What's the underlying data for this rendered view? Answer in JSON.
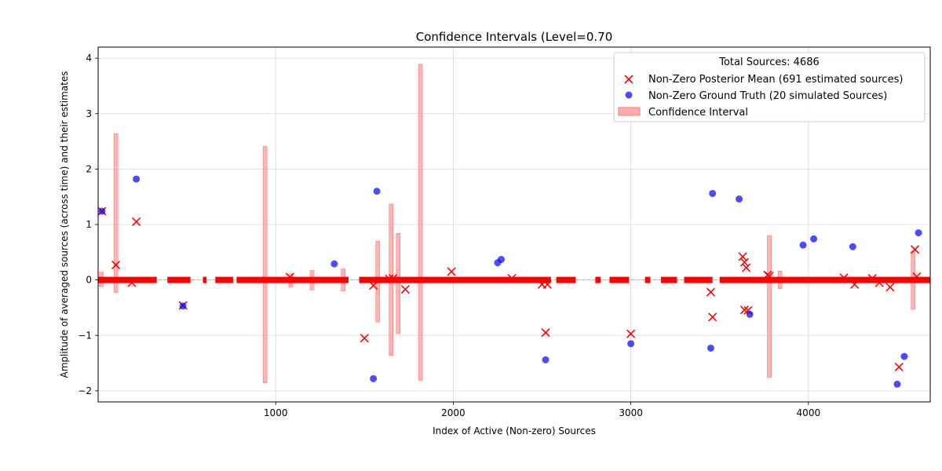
{
  "chart_data": {
    "type": "scatter",
    "title": "Confidence Intervals (Level=0.70",
    "xlabel": "Index of Active (Non-zero) Sources",
    "ylabel": "Amplitude of averaged sources (across time) and their estimates",
    "xlim": [
      0,
      4686
    ],
    "ylim": [
      -2.2,
      4.2
    ],
    "xticks": [
      1000,
      2000,
      3000,
      4000
    ],
    "yticks": [
      -2,
      -1,
      0,
      1,
      2,
      3,
      4
    ],
    "grid": true,
    "zero_line": true,
    "legend": {
      "placement": "top-right",
      "title": "Total Sources: 4686",
      "entries": [
        {
          "label": "Non-Zero Posterior Mean (691 estimated sources)",
          "marker": "x",
          "color": "#ff0000"
        },
        {
          "label": "Non-Zero Ground Truth (20 simulated Sources)",
          "marker": "circle",
          "color": "#0000ff"
        },
        {
          "label": "Confidence Interval",
          "marker": "rect",
          "color": "#ff9999"
        }
      ]
    },
    "zero_estimate_segments": [
      [
        0,
        330
      ],
      [
        390,
        520
      ],
      [
        590,
        610
      ],
      [
        660,
        760
      ],
      [
        780,
        1410
      ],
      [
        1470,
        2550
      ],
      [
        2580,
        2690
      ],
      [
        2800,
        2830
      ],
      [
        2880,
        2990
      ],
      [
        3080,
        3110
      ],
      [
        3170,
        3260
      ],
      [
        3300,
        3460
      ],
      [
        3500,
        4686
      ]
    ],
    "series": [
      {
        "name": "Non-Zero Posterior Mean (691 estimated sources)",
        "color": "#ff0000",
        "x": [
          22,
          100,
          215,
          190,
          478,
          1500,
          1550,
          1730,
          1990,
          2330,
          2500,
          2530,
          2520,
          3000,
          3450,
          3460,
          3630,
          3640,
          3650,
          3640,
          3660,
          3770,
          3780,
          4200,
          4260,
          4360,
          4400,
          4460,
          4510,
          4600,
          4610,
          1080,
          1640,
          1660
        ],
        "y": [
          1.24,
          0.27,
          1.05,
          -0.05,
          -0.46,
          -1.05,
          -0.1,
          -0.17,
          0.15,
          0.03,
          -0.08,
          -0.08,
          -0.95,
          -0.97,
          -0.22,
          -0.67,
          0.42,
          0.32,
          0.22,
          -0.54,
          -0.55,
          0.09,
          0.07,
          0.04,
          -0.08,
          0.03,
          -0.05,
          -0.13,
          -1.57,
          0.55,
          0.06,
          0.05,
          0.02,
          0.03
        ]
      },
      {
        "name": "Non-Zero Ground Truth (20 simulated Sources)",
        "color": "#0000ff",
        "x": [
          22,
          215,
          478,
          1330,
          1550,
          1570,
          2250,
          2270,
          2520,
          3000,
          3450,
          3460,
          3610,
          3670,
          3970,
          4030,
          4250,
          4500,
          4540,
          4620
        ],
        "y": [
          1.24,
          1.82,
          -0.47,
          0.29,
          -1.78,
          1.6,
          0.31,
          0.37,
          -1.44,
          -1.15,
          -1.23,
          1.56,
          1.46,
          -0.62,
          0.63,
          0.74,
          0.6,
          -1.88,
          -1.38,
          0.85
        ]
      }
    ],
    "confidence_intervals": [
      {
        "x": 18,
        "low": -0.12,
        "high": 0.14
      },
      {
        "x": 100,
        "low": -0.23,
        "high": 2.64
      },
      {
        "x": 940,
        "low": -1.86,
        "high": 2.41
      },
      {
        "x": 1085,
        "low": -0.13,
        "high": 0.11
      },
      {
        "x": 1205,
        "low": -0.18,
        "high": 0.17
      },
      {
        "x": 1380,
        "low": -0.2,
        "high": 0.2
      },
      {
        "x": 1575,
        "low": -0.76,
        "high": 0.7
      },
      {
        "x": 1650,
        "low": -1.36,
        "high": 1.37
      },
      {
        "x": 1690,
        "low": -0.97,
        "high": 0.84
      },
      {
        "x": 1815,
        "low": -1.81,
        "high": 3.89
      },
      {
        "x": 3780,
        "low": -1.76,
        "high": 0.8
      },
      {
        "x": 3840,
        "low": -0.16,
        "high": 0.16
      },
      {
        "x": 4590,
        "low": -0.53,
        "high": 0.52
      }
    ]
  }
}
